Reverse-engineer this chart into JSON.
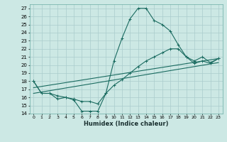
{
  "xlabel": "Humidex (Indice chaleur)",
  "bg_color": "#cce8e4",
  "grid_color": "#aacccc",
  "line_color": "#1a6b60",
  "xlim": [
    -0.5,
    23.5
  ],
  "ylim": [
    14,
    27.5
  ],
  "xticks": [
    0,
    1,
    2,
    3,
    4,
    5,
    6,
    7,
    8,
    9,
    10,
    11,
    12,
    13,
    14,
    15,
    16,
    17,
    18,
    19,
    20,
    21,
    22,
    23
  ],
  "yticks": [
    14,
    15,
    16,
    17,
    18,
    19,
    20,
    21,
    22,
    23,
    24,
    25,
    26,
    27
  ],
  "curve1_x": [
    0,
    1,
    2,
    3,
    4,
    5,
    6,
    7,
    8,
    9,
    10,
    11,
    12,
    13,
    14,
    15,
    16,
    17,
    18,
    19,
    20,
    21,
    22,
    23
  ],
  "curve1_y": [
    18,
    16.5,
    16.5,
    15.8,
    16.0,
    15.7,
    14.3,
    14.3,
    14.3,
    16.5,
    20.5,
    23.3,
    25.7,
    27.0,
    27.0,
    25.5,
    25.0,
    24.2,
    22.5,
    21.0,
    20.2,
    20.5,
    20.2,
    20.8
  ],
  "curve2_x": [
    0,
    1,
    2,
    3,
    4,
    5,
    6,
    7,
    8,
    9,
    10,
    11,
    12,
    13,
    14,
    15,
    16,
    17,
    18,
    19,
    20,
    21,
    22,
    23
  ],
  "curve2_y": [
    18,
    16.5,
    16.5,
    16.2,
    16.0,
    15.8,
    15.5,
    15.5,
    15.2,
    16.5,
    17.5,
    18.2,
    19.0,
    19.8,
    20.5,
    21.0,
    21.5,
    22.0,
    22.0,
    21.0,
    20.5,
    21.0,
    20.3,
    20.8
  ],
  "line1_x": [
    0,
    23
  ],
  "line1_y": [
    17.2,
    20.8
  ],
  "line2_x": [
    0,
    23
  ],
  "line2_y": [
    16.5,
    20.3
  ]
}
